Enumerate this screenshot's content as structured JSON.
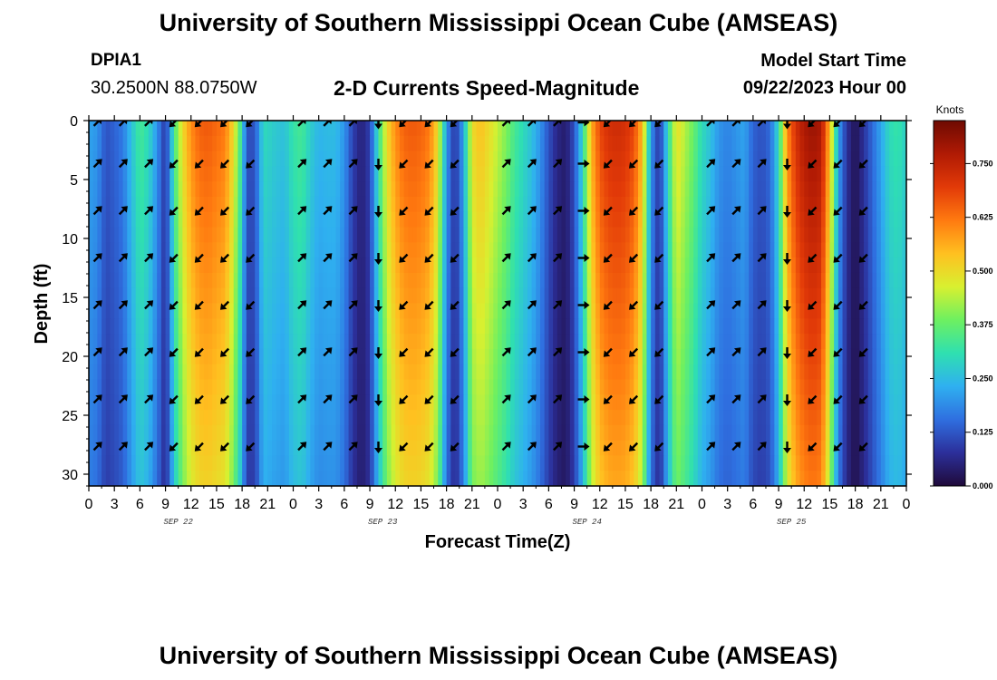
{
  "header": {
    "title": "University of Southern Mississippi Ocean Cube (AMSEAS)",
    "station": "DPIA1",
    "coords": "30.2500N  88.0750W",
    "subtitle": "2-D Currents Speed-Magnitude",
    "model_start_label": "Model Start Time",
    "model_start_value": "09/22/2023 Hour 00"
  },
  "footer": {
    "title": "University of Southern Mississippi Ocean Cube (AMSEAS)"
  },
  "colors": {
    "palette": [
      "#1f0a3a",
      "#2c2f9a",
      "#2f6fe0",
      "#2fb0f0",
      "#2fe0b0",
      "#6ef060",
      "#d8f030",
      "#ffc020",
      "#ff7a10",
      "#e23a08",
      "#b01a04",
      "#6e0a02"
    ]
  },
  "chart_data": {
    "type": "heatmap",
    "title": "2-D Currents Speed-Magnitude",
    "xlabel": "Forecast Time(Z)",
    "ylabel": "Depth (ft)",
    "colorbar_label": "Knots",
    "colorbar_ticks": [
      "0.750",
      "0.625",
      "0.500",
      "0.375",
      "0.250",
      "0.125",
      "0.000"
    ],
    "colorbar_range": [
      0,
      0.85
    ],
    "x_ticks": [
      "0",
      "3",
      "6",
      "9",
      "12",
      "15",
      "18",
      "21",
      "0",
      "3",
      "6",
      "9",
      "12",
      "15",
      "18",
      "21",
      "0",
      "3",
      "6",
      "9",
      "12",
      "15",
      "18",
      "21",
      "0",
      "3",
      "6",
      "9",
      "12",
      "15",
      "18",
      "21",
      "0"
    ],
    "x_range_hours": [
      0,
      96
    ],
    "day_labels": [
      {
        "text": "SEP 22",
        "hour": 10.5
      },
      {
        "text": "SEP 23",
        "hour": 34.5
      },
      {
        "text": "SEP 24",
        "hour": 58.5
      },
      {
        "text": "SEP 25",
        "hour": 82.5
      }
    ],
    "y_ticks": [
      "0",
      "5",
      "10",
      "15",
      "20",
      "25",
      "30"
    ],
    "y_range_ft": [
      0,
      31
    ],
    "speed_profile_knots": [
      [
        0,
        0.22
      ],
      [
        1,
        0.2
      ],
      [
        2,
        0.12
      ],
      [
        3,
        0.14
      ],
      [
        4,
        0.17
      ],
      [
        5,
        0.26
      ],
      [
        6,
        0.34
      ],
      [
        7,
        0.3
      ],
      [
        8,
        0.2
      ],
      [
        9,
        0.08
      ],
      [
        9.5,
        0.2
      ],
      [
        10,
        0.34
      ],
      [
        11,
        0.5
      ],
      [
        12,
        0.6
      ],
      [
        13,
        0.65
      ],
      [
        14,
        0.66
      ],
      [
        15,
        0.64
      ],
      [
        16,
        0.62
      ],
      [
        17,
        0.5
      ],
      [
        18,
        0.3
      ],
      [
        18.5,
        0.12
      ],
      [
        19.5,
        0.12
      ],
      [
        20.5,
        0.3
      ],
      [
        22,
        0.27
      ],
      [
        23,
        0.26
      ],
      [
        24,
        0.32
      ],
      [
        25,
        0.34
      ],
      [
        26,
        0.28
      ],
      [
        27,
        0.24
      ],
      [
        28,
        0.25
      ],
      [
        29,
        0.25
      ],
      [
        30,
        0.2
      ],
      [
        31,
        0.1
      ],
      [
        32,
        0.05
      ],
      [
        33,
        0.1
      ],
      [
        34,
        0.32
      ],
      [
        35,
        0.5
      ],
      [
        36,
        0.6
      ],
      [
        37,
        0.65
      ],
      [
        38,
        0.66
      ],
      [
        39,
        0.65
      ],
      [
        40,
        0.62
      ],
      [
        41,
        0.5
      ],
      [
        42,
        0.2
      ],
      [
        43,
        0.08
      ],
      [
        44,
        0.22
      ],
      [
        45,
        0.5
      ],
      [
        46,
        0.54
      ],
      [
        47,
        0.5
      ],
      [
        48,
        0.45
      ],
      [
        49,
        0.4
      ],
      [
        50,
        0.34
      ],
      [
        51,
        0.3
      ],
      [
        52,
        0.26
      ],
      [
        53,
        0.2
      ],
      [
        54,
        0.12
      ],
      [
        55,
        0.06
      ],
      [
        56,
        0.04
      ],
      [
        57,
        0.12
      ],
      [
        58,
        0.3
      ],
      [
        59,
        0.56
      ],
      [
        60,
        0.68
      ],
      [
        61,
        0.72
      ],
      [
        62,
        0.73
      ],
      [
        63,
        0.72
      ],
      [
        64,
        0.68
      ],
      [
        65,
        0.55
      ],
      [
        66,
        0.2
      ],
      [
        67,
        0.08
      ],
      [
        68,
        0.3
      ],
      [
        69,
        0.5
      ],
      [
        70,
        0.44
      ],
      [
        71,
        0.38
      ],
      [
        72,
        0.3
      ],
      [
        73,
        0.26
      ],
      [
        74,
        0.2
      ],
      [
        75,
        0.18
      ],
      [
        76,
        0.2
      ],
      [
        77,
        0.22
      ],
      [
        78,
        0.14
      ],
      [
        79,
        0.12
      ],
      [
        80,
        0.15
      ],
      [
        81,
        0.3
      ],
      [
        82,
        0.6
      ],
      [
        83,
        0.72
      ],
      [
        84,
        0.78
      ],
      [
        85,
        0.8
      ],
      [
        86,
        0.78
      ],
      [
        87,
        0.55
      ],
      [
        88,
        0.22
      ],
      [
        89,
        0.08
      ],
      [
        90,
        0.02
      ],
      [
        91,
        0.08
      ],
      [
        92,
        0.15
      ],
      [
        93,
        0.22
      ],
      [
        94,
        0.3
      ],
      [
        95,
        0.32
      ],
      [
        96,
        0.28
      ]
    ],
    "arrow_depths_ft": [
      0,
      3.5,
      7.5,
      11.5,
      15.5,
      19.5,
      23.5,
      27.5
    ],
    "arrow_columns": [
      {
        "hour": 1,
        "deg": 45
      },
      {
        "hour": 4,
        "deg": 45
      },
      {
        "hour": 7,
        "deg": 45
      },
      {
        "hour": 10,
        "deg": 225
      },
      {
        "hour": 13,
        "deg": 225
      },
      {
        "hour": 16,
        "deg": 225
      },
      {
        "hour": 19,
        "deg": 225
      },
      {
        "hour": 25,
        "deg": 45
      },
      {
        "hour": 28,
        "deg": 45
      },
      {
        "hour": 31,
        "deg": 45
      },
      {
        "hour": 34,
        "deg": 180
      },
      {
        "hour": 37,
        "deg": 225
      },
      {
        "hour": 40,
        "deg": 225
      },
      {
        "hour": 43,
        "deg": 225
      },
      {
        "hour": 49,
        "deg": 45
      },
      {
        "hour": 52,
        "deg": 45
      },
      {
        "hour": 55,
        "deg": 45
      },
      {
        "hour": 58,
        "deg": 90
      },
      {
        "hour": 61,
        "deg": 225
      },
      {
        "hour": 64,
        "deg": 225
      },
      {
        "hour": 67,
        "deg": 225
      },
      {
        "hour": 73,
        "deg": 45
      },
      {
        "hour": 76,
        "deg": 45
      },
      {
        "hour": 79,
        "deg": 45
      },
      {
        "hour": 82,
        "deg": 180
      },
      {
        "hour": 85,
        "deg": 225
      },
      {
        "hour": 88,
        "deg": 225
      },
      {
        "hour": 91,
        "deg": 225
      }
    ]
  }
}
